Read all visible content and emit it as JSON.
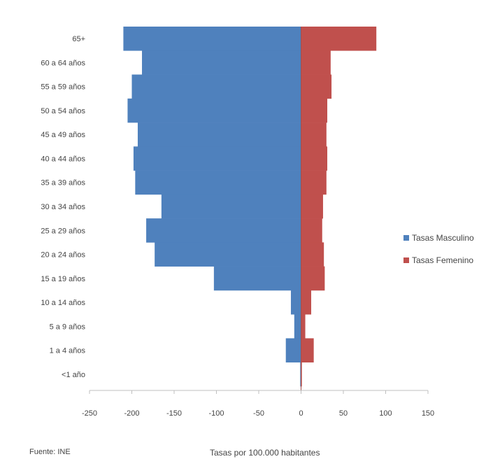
{
  "source_note": "Fuente: INE",
  "chart_data": {
    "type": "bar",
    "orientation": "horizontal",
    "stacking": "diverging",
    "title": "",
    "xlabel": "Tasas por 100.000 habitantes",
    "ylabel": "",
    "xlim": [
      -250,
      150
    ],
    "xticks": [
      -250,
      -200,
      -150,
      -100,
      -50,
      0,
      50,
      100,
      150
    ],
    "xtick_labels": [
      "-250",
      "-200",
      "-150",
      "-100",
      "-50",
      "0",
      "50",
      "100",
      "150"
    ],
    "categories": [
      "<1 año",
      "1 a 4 años",
      "5 a 9 años",
      "10 a 14 años",
      "15 a 19 años",
      "20 a 24 años",
      "25 a 29 años",
      "30 a 34 años",
      "35 a 39 años",
      "40 a 44 años",
      "45 a 49 años",
      "50 a 54 años",
      "55 a 59 años",
      "60 a 64 años",
      "65+"
    ],
    "series": [
      {
        "name": "Tasas Masculino",
        "color": "#4F81BD",
        "values": [
          -1,
          -18,
          -8,
          -12,
          -103,
          -173,
          -183,
          -165,
          -196,
          -198,
          -193,
          -205,
          -200,
          -188,
          -210
        ]
      },
      {
        "name": "Tasas Femenino",
        "color": "#C0504D",
        "values": [
          1,
          15,
          5,
          12,
          28,
          27,
          25,
          26,
          30,
          31,
          30,
          31,
          36,
          35,
          89
        ]
      }
    ],
    "grid": false,
    "legend_position": "right"
  }
}
